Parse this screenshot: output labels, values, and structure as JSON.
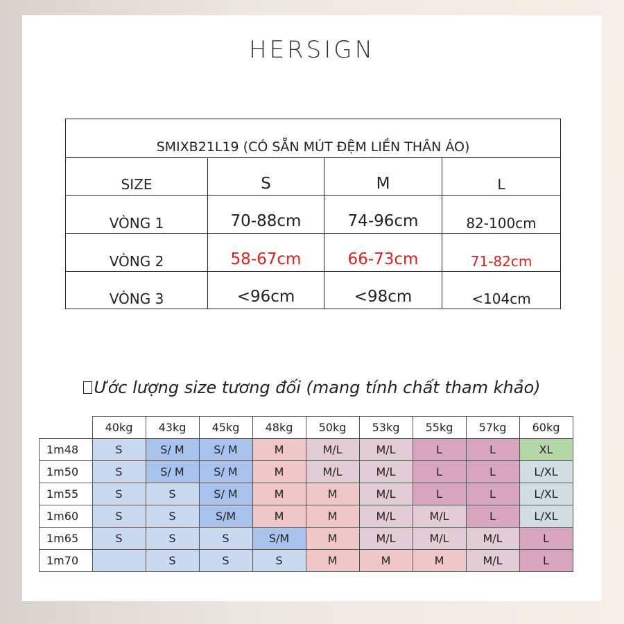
{
  "brand": "HERSIGN",
  "spec": {
    "title": "SMIXB21L19 (CÓ SẴN MÚT ĐỆM LIỀN THÂN ÁO)",
    "header": [
      "SIZE",
      "S",
      "M",
      "L"
    ],
    "rows": [
      {
        "label": "VÒNG 1",
        "values": [
          "70-88cm",
          "74-96cm",
          "82-100cm"
        ]
      },
      {
        "label": "VÒNG 2",
        "values": [
          "58-67cm",
          "66-73cm",
          "71-82cm"
        ],
        "color": "#e0201b"
      },
      {
        "label": "VÒNG 3",
        "values": [
          "<96cm",
          "<98cm",
          "<104cm"
        ]
      }
    ]
  },
  "subtitle": "Ước lượng size tương đối (mang tính chất tham khảo)",
  "estimate": {
    "weights": [
      "40kg",
      "43kg",
      "45kg",
      "48kg",
      "50kg",
      "53kg",
      "55kg",
      "57kg",
      "60kg"
    ],
    "rows": [
      {
        "height": "1m48",
        "cells": [
          "S",
          "S/ M",
          "S/ M",
          "M",
          "M/L",
          "M/L",
          "L",
          "L",
          "XL"
        ]
      },
      {
        "height": "1m50",
        "cells": [
          "S",
          "S/ M",
          "S/ M",
          "M",
          "M/L",
          "M/L",
          "L",
          "L",
          "L/XL"
        ]
      },
      {
        "height": "1m55",
        "cells": [
          "S",
          "S",
          "S/ M",
          "M",
          "M",
          "M/L",
          "L",
          "L",
          "L/XL"
        ]
      },
      {
        "height": "1m60",
        "cells": [
          "S",
          "S",
          "S/M",
          "M",
          "M",
          "M/L",
          "M/L",
          "L",
          "L/XL"
        ]
      },
      {
        "height": "1m65",
        "cells": [
          "S",
          "S",
          "S",
          "S/M",
          "M",
          "M/L",
          "M/L",
          "M/L",
          "L"
        ]
      },
      {
        "height": "1m70",
        "cells": [
          "",
          "S",
          "S",
          "S",
          "M",
          "M",
          "M",
          "M/L",
          "L"
        ]
      }
    ],
    "colors": {
      "light_blue": "#c8d9f0",
      "blue": "#a8c2ec",
      "pink": "#efc7c9",
      "lilac": "#e2cdd6",
      "mauve": "#d9a6bf",
      "green": "#b6d7a8",
      "grey_blue": "#d0dde3"
    }
  }
}
